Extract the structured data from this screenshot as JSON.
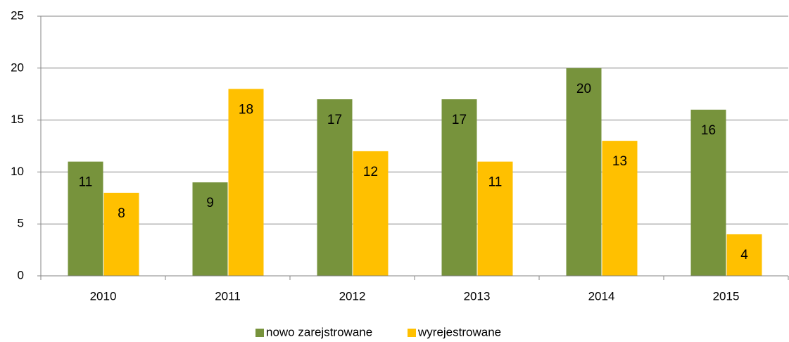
{
  "chart_data": {
    "type": "bar",
    "categories": [
      "2010",
      "2011",
      "2012",
      "2013",
      "2014",
      "2015"
    ],
    "series": [
      {
        "name": "nowo zarejstrowane",
        "color": "#77933c",
        "values": [
          11,
          9,
          17,
          17,
          20,
          16
        ]
      },
      {
        "name": "wyrejestrowane",
        "color": "#ffc000",
        "values": [
          8,
          18,
          12,
          11,
          13,
          4
        ]
      }
    ],
    "ylim": [
      0,
      25
    ],
    "yticks": [
      0,
      5,
      10,
      15,
      20,
      25
    ],
    "grid": true,
    "legend": "bottom"
  }
}
